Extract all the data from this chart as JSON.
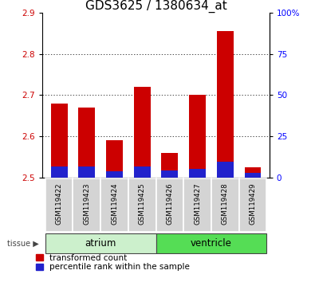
{
  "title": "GDS3625 / 1380634_at",
  "samples": [
    "GSM119422",
    "GSM119423",
    "GSM119424",
    "GSM119425",
    "GSM119426",
    "GSM119427",
    "GSM119428",
    "GSM119429"
  ],
  "red_values": [
    2.68,
    2.67,
    2.59,
    2.72,
    2.56,
    2.7,
    2.855,
    2.525
  ],
  "blue_values": [
    2.528,
    2.528,
    2.515,
    2.528,
    2.518,
    2.521,
    2.538,
    2.512
  ],
  "base": 2.5,
  "ylim": [
    2.5,
    2.9
  ],
  "yticks": [
    2.5,
    2.6,
    2.7,
    2.8,
    2.9
  ],
  "right_ytick_vals": [
    0,
    25,
    50,
    75,
    100
  ],
  "right_ylabels": [
    "0",
    "25",
    "50",
    "75",
    "100%"
  ],
  "grid_values": [
    2.6,
    2.7,
    2.8
  ],
  "atrium_count": 4,
  "ventricle_count": 4,
  "bar_width": 0.6,
  "red_color": "#cc0000",
  "blue_color": "#2222cc",
  "atrium_color": "#ccf0cc",
  "ventricle_color": "#55dd55",
  "label_bg_color": "#d4d4d4",
  "title_fontsize": 11,
  "tick_fontsize": 7.5,
  "legend_fontsize": 7.5,
  "tissue_label_color": "#444444"
}
